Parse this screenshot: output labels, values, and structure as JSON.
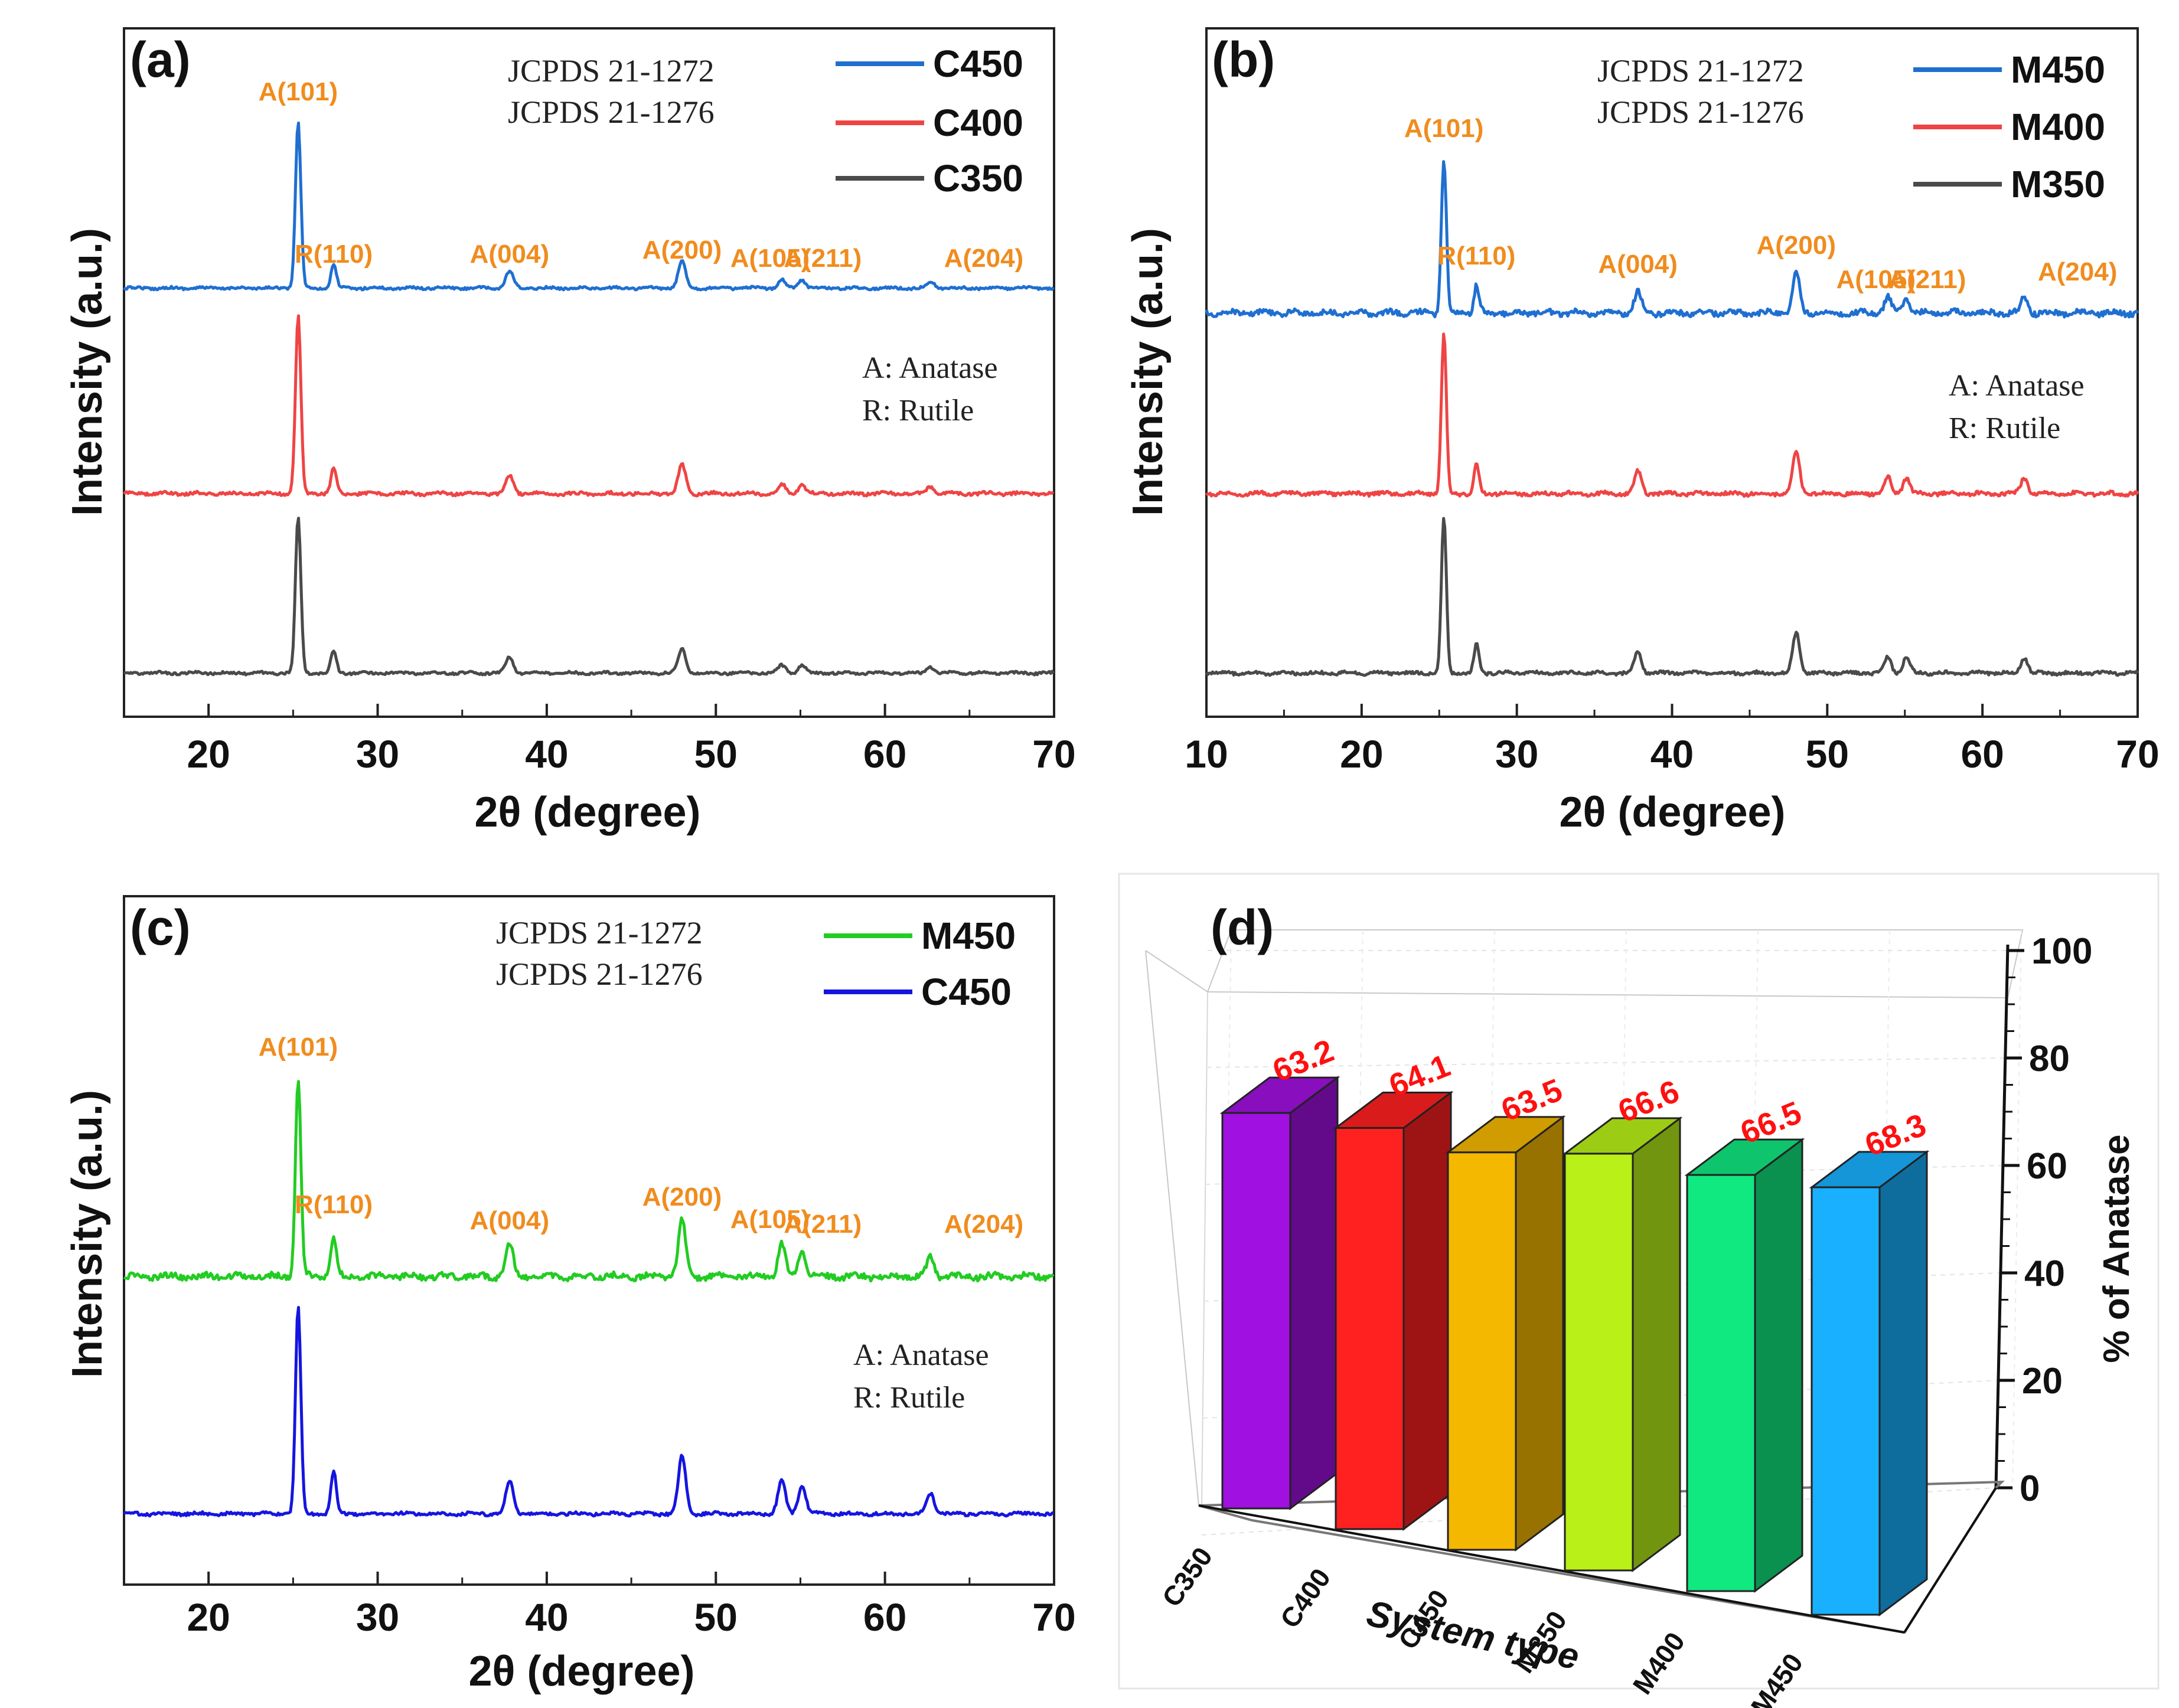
{
  "colors": {
    "c450": "#1f6fd1",
    "c400": "#ef4444",
    "c350": "#4a4a4a",
    "m450_green": "#22cc22",
    "c450_blue": "#1515e0",
    "peak_label": "#f08c1e",
    "bar_value": "#ff1010"
  },
  "chart_data": [
    {
      "panel": "(a)",
      "type": "line",
      "xlabel": "2θ (degree)",
      "ylabel": "Intensity (a.u.)",
      "xlim": [
        15,
        70
      ],
      "xticks": [
        "20",
        "30",
        "40",
        "50",
        "60",
        "70"
      ],
      "notes": [
        "JCPDS 21-1272",
        "JCPDS 21-1276"
      ],
      "phase_legend": [
        "A: Anatase",
        "R: Rutile"
      ],
      "series": [
        {
          "name": "C450",
          "color": "#1f6fd1"
        },
        {
          "name": "C400",
          "color": "#ef4444"
        },
        {
          "name": "C350",
          "color": "#4a4a4a"
        }
      ],
      "peaks": [
        {
          "label": "A(101)",
          "x": 25.3,
          "h": 1.0
        },
        {
          "label": "R(110)",
          "x": 27.4,
          "h": 0.14
        },
        {
          "label": "A(004)",
          "x": 37.8,
          "h": 0.1
        },
        {
          "label": "A(200)",
          "x": 48.0,
          "h": 0.16
        },
        {
          "label": "A(105)",
          "x": 53.9,
          "h": 0.05
        },
        {
          "label": "A(211)",
          "x": 55.1,
          "h": 0.05
        },
        {
          "label": "A(204)",
          "x": 62.7,
          "h": 0.04
        }
      ]
    },
    {
      "panel": "(b)",
      "type": "line",
      "xlabel": "2θ (degree)",
      "ylabel": "Intensity (a.u.)",
      "xlim": [
        10,
        70
      ],
      "xticks": [
        "10",
        "20",
        "30",
        "40",
        "50",
        "60",
        "70"
      ],
      "notes": [
        "JCPDS 21-1272",
        "JCPDS 21-1276"
      ],
      "phase_legend": [
        "A: Anatase",
        "R: Rutile"
      ],
      "series": [
        {
          "name": "M450",
          "color": "#1f6fd1"
        },
        {
          "name": "M400",
          "color": "#ef4444"
        },
        {
          "name": "M350",
          "color": "#4a4a4a"
        }
      ],
      "peaks": [
        {
          "label": "A(101)",
          "x": 25.3,
          "h": 1.0
        },
        {
          "label": "R(110)",
          "x": 27.4,
          "h": 0.18
        },
        {
          "label": "A(004)",
          "x": 37.8,
          "h": 0.14
        },
        {
          "label": "A(200)",
          "x": 48.0,
          "h": 0.26
        },
        {
          "label": "A(105)",
          "x": 53.9,
          "h": 0.1
        },
        {
          "label": "A(211)",
          "x": 55.1,
          "h": 0.1
        },
        {
          "label": "A(204)",
          "x": 62.7,
          "h": 0.1
        }
      ]
    },
    {
      "panel": "(c)",
      "type": "line",
      "xlabel": "2θ (degree)",
      "ylabel": "Intensity (a.u.)",
      "xlim": [
        15,
        70
      ],
      "xticks": [
        "20",
        "30",
        "40",
        "50",
        "60",
        "70"
      ],
      "notes": [
        "JCPDS 21-1272",
        "JCPDS 21-1276"
      ],
      "phase_legend": [
        "A: Anatase",
        "R: Rutile"
      ],
      "series": [
        {
          "name": "M450",
          "color": "#22cc22"
        },
        {
          "name": "C450",
          "color": "#1515e0"
        }
      ],
      "peaks": [
        {
          "label": "A(101)",
          "x": 25.3,
          "h": 1.0
        },
        {
          "label": "R(110)",
          "x": 27.4,
          "h": 0.2
        },
        {
          "label": "A(004)",
          "x": 37.8,
          "h": 0.16
        },
        {
          "label": "A(200)",
          "x": 48.0,
          "h": 0.28
        },
        {
          "label": "A(105)",
          "x": 53.9,
          "h": 0.16
        },
        {
          "label": "A(211)",
          "x": 55.1,
          "h": 0.14
        },
        {
          "label": "A(204)",
          "x": 62.7,
          "h": 0.1
        }
      ]
    },
    {
      "panel": "(d)",
      "type": "bar",
      "xlabel": "System type",
      "ylabel": "% of Anatase",
      "ylim": [
        0,
        100
      ],
      "yticks": [
        "0",
        "20",
        "40",
        "60",
        "80",
        "100"
      ],
      "categories": [
        "C350",
        "C400",
        "C450",
        "M350",
        "M400",
        "M450"
      ],
      "values": [
        63.2,
        64.1,
        63.5,
        66.6,
        66.5,
        68.3
      ],
      "value_labels": [
        "63.2",
        "64.1",
        "63.5",
        "66.6",
        "66.5",
        "68.3"
      ],
      "bar_colors": [
        "#a010e0",
        "#ff2020",
        "#f5b800",
        "#b8f018",
        "#10e880",
        "#18b0ff"
      ]
    }
  ]
}
